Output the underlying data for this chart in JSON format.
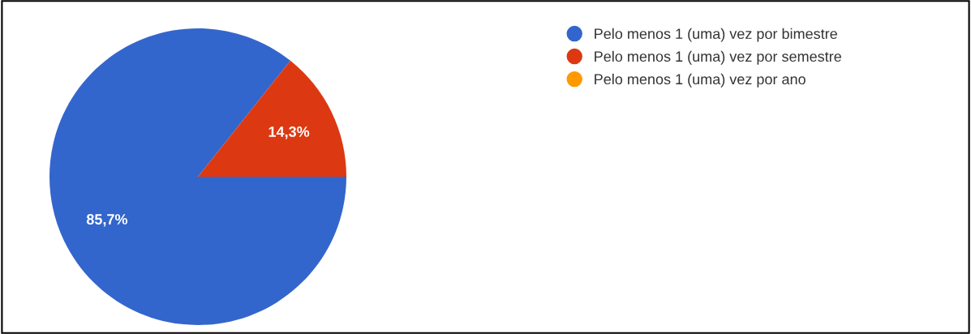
{
  "chart_data": {
    "type": "pie",
    "categories": [
      "Pelo menos 1 (uma) vez por bimestre",
      "Pelo menos 1 (uma) vez por semestre",
      "Pelo menos 1 (uma) vez por ano"
    ],
    "values": [
      85.7,
      14.3,
      0
    ],
    "colors": [
      "#3366cc",
      "#dc3912",
      "#ff9900"
    ],
    "value_labels": [
      "85,7%",
      "14,3%",
      null
    ],
    "legend": "top right"
  }
}
